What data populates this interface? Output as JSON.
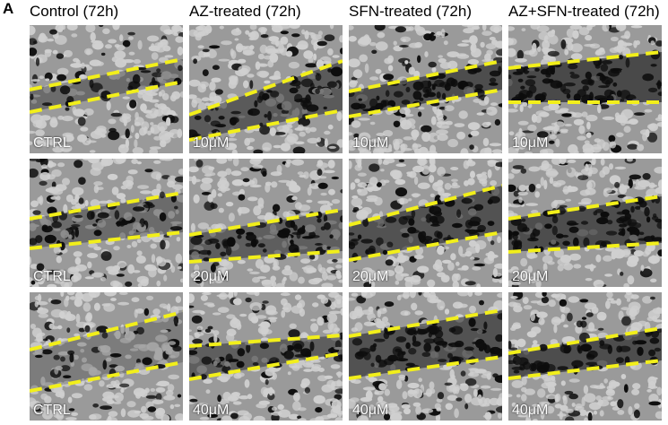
{
  "panel_label": "A",
  "columns": [
    {
      "header": "Control (72h)"
    },
    {
      "header": "AZ-treated (72h)"
    },
    {
      "header": "SFN-treated (72h)"
    },
    {
      "header": "AZ+SFN-treated (72h)"
    }
  ],
  "rows": [
    {
      "labels": [
        "CTRL",
        "10μM",
        "10μM",
        "10μM"
      ]
    },
    {
      "labels": [
        "CTRL",
        "20μM",
        "20μM",
        "20μM"
      ]
    },
    {
      "labels": [
        "CTRL",
        "40μM",
        "40μM",
        "40μM"
      ]
    }
  ],
  "colors": {
    "scratch_line": "#f2ef1a",
    "cell": "#d0d0d0",
    "gap": "#0d0d0d",
    "label_text": "#ffffff"
  }
}
